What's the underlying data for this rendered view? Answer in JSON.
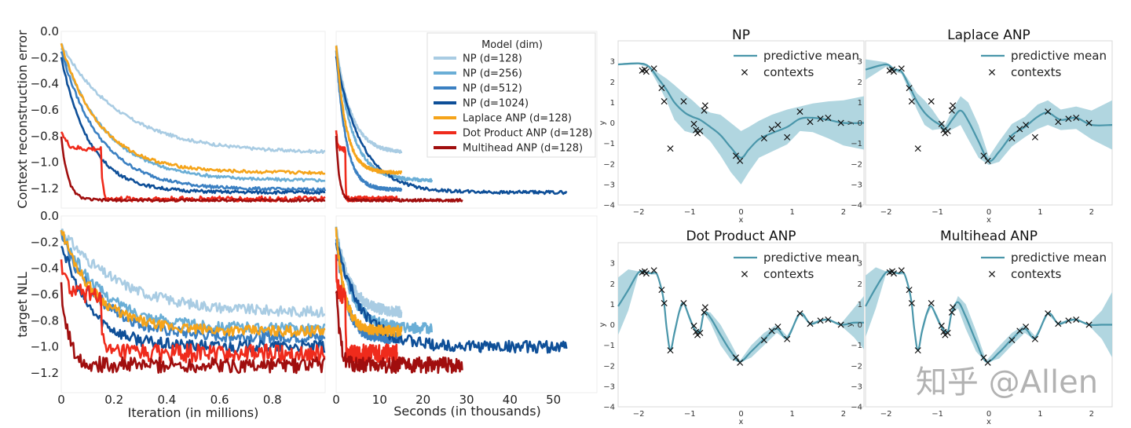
{
  "chart_data": [
    {
      "id": "training_curves",
      "type": "line",
      "legend": {
        "title": "Model (dim)",
        "placement": "top-right",
        "entries": [
          {
            "name": "NP (d=128)",
            "color": "#a9cce3"
          },
          {
            "name": "NP (d=256)",
            "color": "#6aaed6"
          },
          {
            "name": "NP (d=512)",
            "color": "#3b80c2"
          },
          {
            "name": "NP (d=1024)",
            "color": "#0e4f98"
          },
          {
            "name": "Laplace ANP (d=128)",
            "color": "#f5a41a"
          },
          {
            "name": "Dot Product ANP (d=128)",
            "color": "#ef2b1c"
          },
          {
            "name": "Multihead ANP (d=128)",
            "color": "#a00e0e"
          }
        ]
      },
      "xlabels": {
        "iteration": "Iteration (in millions)",
        "seconds": "Seconds (in thousands)"
      },
      "ylabels": {
        "top": "Context reconstruction error",
        "bottom": "target NLL"
      },
      "x_ticks_iteration": [
        "0",
        "0.2",
        "0.4",
        "0.6",
        "0.8"
      ],
      "x_ticks_seconds": [
        "0",
        "10",
        "20",
        "30",
        "40",
        "50"
      ],
      "y_ticks_top": [
        "0.0",
        "−0.2",
        "−0.4",
        "−0.6",
        "−0.8",
        "−1.0",
        "−1.2"
      ],
      "y_ticks_bottom": [
        "0.0",
        "−0.2",
        "−0.4",
        "−0.6",
        "−0.8",
        "−1.0",
        "−1.2"
      ],
      "xlim_iteration": [
        0,
        1.0
      ],
      "xlim_seconds": [
        0,
        60
      ],
      "ylim": [
        -1.35,
        0.0
      ],
      "series": [
        {
          "name": "NP (d=128)",
          "t_end_k": 15,
          "recon": {
            "start": -0.1,
            "final": -0.93,
            "tau": 0.23,
            "noise": 0.012
          },
          "nll": {
            "start": -0.1,
            "final": -0.74,
            "tau": 0.22,
            "noise": 0.04
          }
        },
        {
          "name": "NP (d=256)",
          "t_end_k": 22,
          "recon": {
            "start": -0.12,
            "final": -1.14,
            "tau": 0.17,
            "noise": 0.012
          },
          "nll": {
            "start": -0.12,
            "final": -0.86,
            "tau": 0.16,
            "noise": 0.04
          }
        },
        {
          "name": "NP (d=512)",
          "t_end_k": 15,
          "recon": {
            "start": -0.15,
            "final": -1.21,
            "tau": 0.15,
            "noise": 0.012
          },
          "nll": {
            "start": -0.15,
            "final": -0.93,
            "tau": 0.15,
            "noise": 0.045
          }
        },
        {
          "name": "NP (d=1024)",
          "t_end_k": 53,
          "recon": {
            "start": -0.2,
            "final": -1.23,
            "tau": 0.11,
            "noise": 0.012
          },
          "nll": {
            "start": -0.2,
            "final": -1.0,
            "tau": 0.11,
            "noise": 0.045
          }
        },
        {
          "name": "Laplace ANP (d=128)",
          "t_end_k": 15,
          "recon": {
            "start": -0.1,
            "final": -1.08,
            "tau": 0.15,
            "noise": 0.012
          },
          "nll": {
            "start": -0.1,
            "final": -0.88,
            "tau": 0.13,
            "noise": 0.04
          }
        },
        {
          "name": "Dot Product ANP (d=128)",
          "t_end_k": 14,
          "recon": {
            "start": -0.75,
            "final": -1.28,
            "plateau": -0.9,
            "drop_at": 0.15,
            "noise": 0.02
          },
          "nll": {
            "start": -0.35,
            "final": -1.05,
            "plateau": -0.6,
            "drop_at": 0.15,
            "noise": 0.07
          }
        },
        {
          "name": "Multihead ANP (d=128)",
          "t_end_k": 29,
          "recon": {
            "start": -0.8,
            "final": -1.29,
            "tau": 0.025,
            "noise": 0.01
          },
          "nll": {
            "start": -0.55,
            "final": -1.14,
            "tau": 0.03,
            "noise": 0.06
          }
        }
      ]
    },
    {
      "id": "regression_panels",
      "type": "line",
      "legend_labels": {
        "mean": "predictive mean",
        "contexts": "contexts"
      },
      "xlabel": "x",
      "ylabel": "y",
      "x_ticks": [
        "−2",
        "−1",
        "0",
        "1",
        "2"
      ],
      "y_ticks": [
        "3",
        "2",
        "1",
        "0",
        "−1",
        "−2",
        "−3",
        "−4"
      ],
      "xlim": [
        -2.4,
        2.4
      ],
      "ylim": [
        -4,
        4
      ],
      "colors": {
        "mean": "#4a96aa",
        "band": "#a9d2dd",
        "context": "#111111"
      },
      "contexts": [
        [
          -1.93,
          2.55
        ],
        [
          -1.88,
          2.6
        ],
        [
          -1.85,
          2.5
        ],
        [
          -1.7,
          2.65
        ],
        [
          -1.55,
          1.7
        ],
        [
          -1.5,
          1.05
        ],
        [
          -1.38,
          -1.25
        ],
        [
          -1.12,
          1.05
        ],
        [
          -0.92,
          -0.05
        ],
        [
          -0.88,
          -0.35
        ],
        [
          -0.85,
          -0.5
        ],
        [
          -0.8,
          -0.4
        ],
        [
          -0.72,
          0.6
        ],
        [
          -0.7,
          0.85
        ],
        [
          -0.1,
          -1.6
        ],
        [
          -0.02,
          -1.85
        ],
        [
          0.45,
          -0.75
        ],
        [
          0.6,
          -0.3
        ],
        [
          0.72,
          -0.1
        ],
        [
          0.9,
          -0.7
        ],
        [
          1.15,
          0.55
        ],
        [
          1.35,
          0.05
        ],
        [
          1.55,
          0.2
        ],
        [
          1.7,
          0.25
        ],
        [
          1.95,
          0.0
        ]
      ],
      "panels": [
        {
          "title": "NP",
          "mean": [
            [
              -2.4,
              2.85
            ],
            [
              -2.0,
              2.9
            ],
            [
              -1.8,
              2.75
            ],
            [
              -1.6,
              2.1
            ],
            [
              -1.45,
              1.6
            ],
            [
              -1.3,
              1.0
            ],
            [
              -1.1,
              0.5
            ],
            [
              -0.95,
              0.3
            ],
            [
              -0.8,
              0.15
            ],
            [
              -0.6,
              -0.2
            ],
            [
              -0.4,
              -0.6
            ],
            [
              -0.2,
              -1.2
            ],
            [
              0.0,
              -1.7
            ],
            [
              0.15,
              -1.3
            ],
            [
              0.35,
              -0.8
            ],
            [
              0.6,
              -0.5
            ],
            [
              0.9,
              -0.2
            ],
            [
              1.15,
              0.2
            ],
            [
              1.4,
              0.25
            ],
            [
              1.7,
              0.15
            ],
            [
              2.0,
              0.0
            ],
            [
              2.4,
              0.0
            ]
          ],
          "band": [
            0.05,
            0.05,
            0.05,
            0.3,
            0.55,
            0.85,
            0.9,
            0.8,
            0.6,
            0.7,
            1.0,
            1.2,
            1.3,
            1.1,
            0.9,
            0.9,
            0.85,
            0.6,
            0.7,
            0.9,
            1.1,
            1.3
          ]
        },
        {
          "title": "Laplace ANP",
          "mean": [
            [
              -2.4,
              2.6
            ],
            [
              -2.0,
              2.85
            ],
            [
              -1.85,
              2.6
            ],
            [
              -1.7,
              2.5
            ],
            [
              -1.55,
              1.8
            ],
            [
              -1.4,
              1.05
            ],
            [
              -1.25,
              0.5
            ],
            [
              -1.1,
              0.15
            ],
            [
              -0.95,
              -0.1
            ],
            [
              -0.85,
              -0.3
            ],
            [
              -0.7,
              0.2
            ],
            [
              -0.55,
              0.6
            ],
            [
              -0.4,
              0.1
            ],
            [
              -0.2,
              -0.9
            ],
            [
              0.0,
              -1.85
            ],
            [
              0.2,
              -1.4
            ],
            [
              0.45,
              -0.6
            ],
            [
              0.7,
              -0.2
            ],
            [
              0.95,
              0.3
            ],
            [
              1.15,
              0.5
            ],
            [
              1.4,
              0.15
            ],
            [
              1.7,
              0.25
            ],
            [
              2.0,
              -0.1
            ],
            [
              2.4,
              -0.1
            ]
          ],
          "band": [
            0.5,
            0.1,
            0.1,
            0.1,
            0.25,
            0.4,
            0.6,
            0.5,
            0.2,
            0.2,
            0.5,
            0.7,
            0.9,
            0.8,
            0.2,
            0.5,
            0.55,
            0.5,
            0.6,
            0.6,
            0.5,
            0.55,
            0.7,
            1.2
          ]
        },
        {
          "title": "Dot Product ANP",
          "mean": [
            [
              -2.4,
              0.9
            ],
            [
              -2.2,
              1.7
            ],
            [
              -2.0,
              2.55
            ],
            [
              -1.85,
              2.55
            ],
            [
              -1.75,
              2.5
            ],
            [
              -1.65,
              2.5
            ],
            [
              -1.55,
              1.7
            ],
            [
              -1.5,
              1.0
            ],
            [
              -1.45,
              -0.2
            ],
            [
              -1.38,
              -1.25
            ],
            [
              -1.3,
              -0.4
            ],
            [
              -1.2,
              0.7
            ],
            [
              -1.12,
              1.05
            ],
            [
              -1.0,
              0.3
            ],
            [
              -0.9,
              -0.25
            ],
            [
              -0.8,
              -0.3
            ],
            [
              -0.72,
              0.6
            ],
            [
              -0.6,
              0.35
            ],
            [
              -0.4,
              -0.5
            ],
            [
              -0.2,
              -1.3
            ],
            [
              -0.02,
              -1.8
            ],
            [
              0.2,
              -1.3
            ],
            [
              0.45,
              -0.7
            ],
            [
              0.7,
              -0.2
            ],
            [
              0.9,
              -0.65
            ],
            [
              1.15,
              0.55
            ],
            [
              1.35,
              0.05
            ],
            [
              1.55,
              0.2
            ],
            [
              1.7,
              0.25
            ],
            [
              1.95,
              0.0
            ],
            [
              2.2,
              0.1
            ],
            [
              2.4,
              0.1
            ]
          ],
          "band": [
            1.4,
            1.0,
            0.05,
            0.05,
            0.05,
            0.05,
            0.05,
            0.1,
            0.15,
            0.05,
            0.2,
            0.15,
            0.05,
            0.15,
            0.05,
            0.05,
            0.05,
            0.25,
            0.5,
            0.4,
            0.05,
            0.3,
            0.3,
            0.2,
            0.1,
            0.05,
            0.05,
            0.05,
            0.05,
            0.05,
            0.7,
            1.3
          ]
        },
        {
          "title": "Multihead ANP",
          "mean": [
            [
              -2.4,
              0.9
            ],
            [
              -2.2,
              1.8
            ],
            [
              -2.0,
              2.55
            ],
            [
              -1.85,
              2.55
            ],
            [
              -1.75,
              2.5
            ],
            [
              -1.65,
              2.5
            ],
            [
              -1.55,
              1.7
            ],
            [
              -1.5,
              1.0
            ],
            [
              -1.45,
              -0.2
            ],
            [
              -1.38,
              -1.25
            ],
            [
              -1.3,
              -0.3
            ],
            [
              -1.2,
              0.6
            ],
            [
              -1.12,
              0.9
            ],
            [
              -1.0,
              0.3
            ],
            [
              -0.9,
              -0.2
            ],
            [
              -0.8,
              -0.35
            ],
            [
              -0.72,
              0.6
            ],
            [
              -0.6,
              1.1
            ],
            [
              -0.45,
              0.4
            ],
            [
              -0.25,
              -0.8
            ],
            [
              -0.05,
              -1.8
            ],
            [
              0.2,
              -1.35
            ],
            [
              0.45,
              -0.7
            ],
            [
              0.7,
              -0.2
            ],
            [
              0.9,
              -0.65
            ],
            [
              1.15,
              0.55
            ],
            [
              1.35,
              0.05
            ],
            [
              1.55,
              0.2
            ],
            [
              1.7,
              0.25
            ],
            [
              1.95,
              0.0
            ],
            [
              2.2,
              0.0
            ],
            [
              2.4,
              0.0
            ]
          ],
          "band": [
            1.5,
            1.0,
            0.05,
            0.05,
            0.05,
            0.05,
            0.05,
            0.1,
            0.15,
            0.05,
            0.2,
            0.15,
            0.05,
            0.15,
            0.05,
            0.05,
            0.05,
            0.3,
            0.6,
            0.5,
            0.05,
            0.3,
            0.3,
            0.2,
            0.1,
            0.05,
            0.05,
            0.05,
            0.05,
            0.05,
            0.7,
            1.6
          ]
        }
      ]
    }
  ],
  "watermark": "知乎 @Allen"
}
